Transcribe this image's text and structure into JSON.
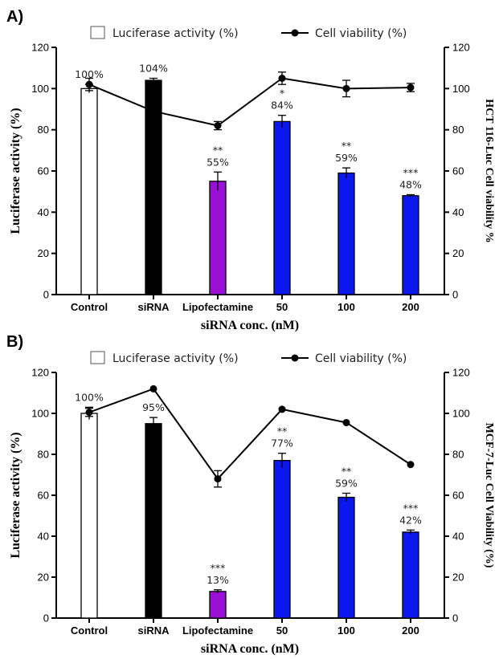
{
  "chart_data": [
    {
      "type": "bar",
      "panel_label": "A)",
      "categories": [
        "Control",
        "siRNA",
        "Lipofectamine",
        "50",
        "100",
        "200"
      ],
      "bar_colors": [
        "#ffffff",
        "#000000",
        "#9b10d6",
        "#0a18ee",
        "#0a18ee",
        "#0a18ee"
      ],
      "series": [
        {
          "name": "Luciferase activity (%)",
          "type": "bar",
          "values": [
            100,
            104,
            55,
            84,
            59,
            48
          ],
          "errors": [
            2,
            1,
            4.5,
            3,
            2.5,
            0.5
          ],
          "value_labels": [
            "100%",
            "104%",
            "55%",
            "84%",
            "59%",
            "48%"
          ],
          "significance": [
            "",
            "",
            "**",
            "*",
            "**",
            "***"
          ]
        },
        {
          "name": "Cell viability (%)",
          "type": "line",
          "values": [
            102,
            89,
            82,
            105,
            100,
            100.5
          ],
          "errors": [
            3,
            0,
            2,
            3,
            4,
            2
          ]
        }
      ],
      "xlabel": "siRNA conc. (nM)",
      "ylabel": "Luciferase activity (%)",
      "y2label": "HCT 116-Luc Cell viability %",
      "ylim": [
        0,
        120
      ],
      "y2lim": [
        0,
        120
      ],
      "yticks": [
        0,
        20,
        40,
        60,
        80,
        100,
        120
      ],
      "legend": "top"
    },
    {
      "type": "bar",
      "panel_label": "B)",
      "categories": [
        "Control",
        "siRNA",
        "Lipofectamine",
        "50",
        "100",
        "200"
      ],
      "bar_colors": [
        "#ffffff",
        "#000000",
        "#9b10d6",
        "#0a18ee",
        "#0a18ee",
        "#0a18ee"
      ],
      "series": [
        {
          "name": "Luciferase activity (%)",
          "type": "bar",
          "values": [
            100,
            95,
            13,
            77,
            59,
            42
          ],
          "errors": [
            3,
            3,
            0.8,
            3.5,
            2,
            1
          ],
          "value_labels": [
            "100%",
            "95%",
            "13%",
            "77%",
            "59%",
            "42%"
          ],
          "significance": [
            "",
            "",
            "***",
            "**",
            "**",
            "***"
          ]
        },
        {
          "name": "Cell viability (%)",
          "type": "line",
          "values": [
            100.5,
            112,
            68,
            102,
            95.5,
            75
          ],
          "errors": [
            2,
            0,
            4,
            0,
            0,
            0
          ]
        }
      ],
      "xlabel": "siRNA conc. (nM)",
      "ylabel": "Luciferase activity (%)",
      "y2label": "MCF-7-Luc Cell Viability (%)",
      "ylim": [
        0,
        120
      ],
      "y2lim": [
        0,
        120
      ],
      "yticks": [
        0,
        20,
        40,
        60,
        80,
        100,
        120
      ],
      "legend": "top"
    }
  ]
}
